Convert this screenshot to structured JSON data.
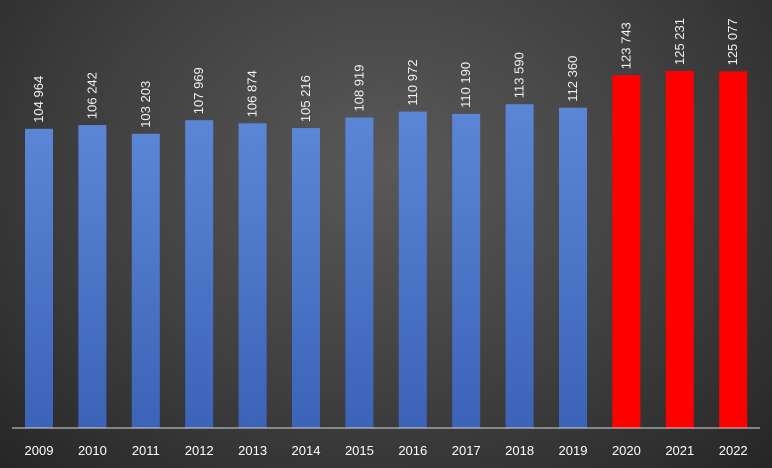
{
  "chart_data": {
    "type": "bar",
    "categories": [
      "2009",
      "2010",
      "2011",
      "2012",
      "2013",
      "2014",
      "2015",
      "2016",
      "2017",
      "2018",
      "2019",
      "2020",
      "2021",
      "2022"
    ],
    "values": [
      104964,
      106242,
      103203,
      107969,
      106874,
      105216,
      108919,
      110972,
      110190,
      113590,
      112360,
      123743,
      125231,
      125077
    ],
    "value_labels": [
      "104 964",
      "106 242",
      "103 203",
      "107 969",
      "106 874",
      "105 216",
      "108 919",
      "110 972",
      "110 190",
      "113 590",
      "112 360",
      "123 743",
      "125 231",
      "125 077"
    ],
    "bar_colors": [
      "#4f7ccc",
      "#4f7ccc",
      "#4f7ccc",
      "#4f7ccc",
      "#4f7ccc",
      "#4f7ccc",
      "#4f7ccc",
      "#4f7ccc",
      "#4f7ccc",
      "#4f7ccc",
      "#4f7ccc",
      "#ff0000",
      "#ff0000",
      "#ff0000"
    ],
    "title": "",
    "xlabel": "",
    "ylabel": "",
    "ylim": [
      0,
      125231
    ],
    "grid": false,
    "legend": "none",
    "data_labels": "rotated-vertical-above-bars"
  }
}
